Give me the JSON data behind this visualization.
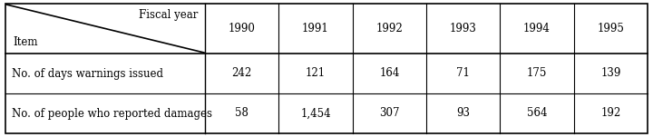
{
  "col_headers": [
    "1990",
    "1991",
    "1992",
    "1993",
    "1994",
    "1995"
  ],
  "row_labels": [
    "No. of days warnings issued",
    "No. of people who reported damages"
  ],
  "values": [
    [
      "242",
      "121",
      "164",
      "71",
      "175",
      "139"
    ],
    [
      "58",
      "1,454",
      "307",
      "93",
      "564",
      "192"
    ]
  ],
  "header_left_top": "Fiscal year",
  "header_left_bottom": "Item",
  "bg_color": "#ffffff",
  "border_color": "#000000",
  "font_size": 8.5,
  "header_font_size": 8.5
}
